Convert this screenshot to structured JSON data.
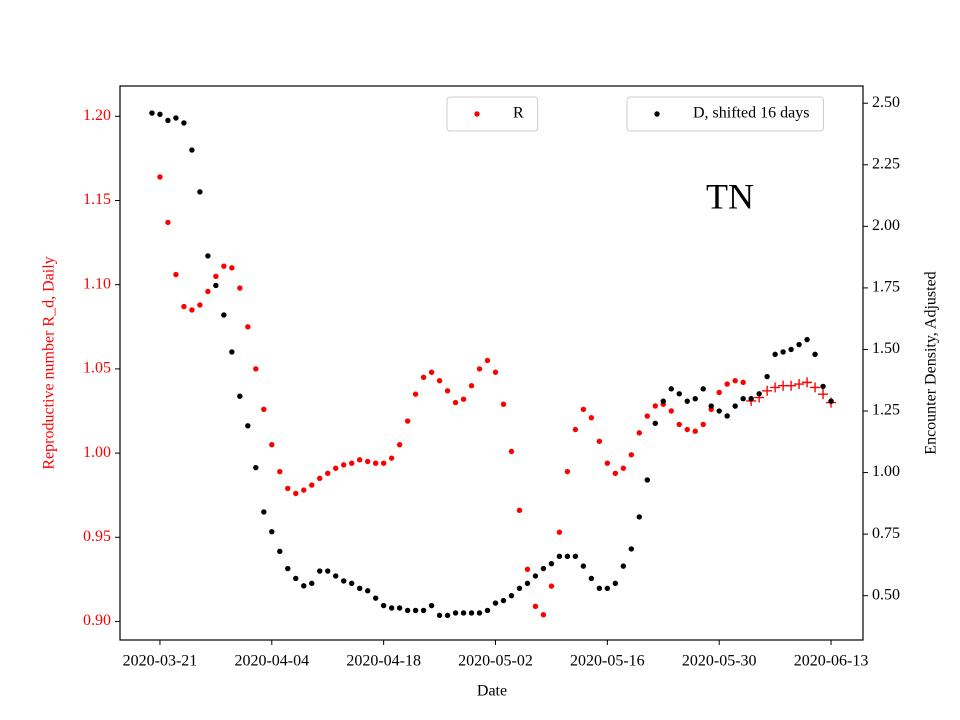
{
  "chart_data": {
    "type": "scatter",
    "annotation": "TN",
    "xlabel": "Date",
    "ylabel": "Reproductive number R_d, Daily",
    "y2label": "Encounter Density, Adjusted",
    "x": [
      "2020-03-20",
      "2020-03-21",
      "2020-03-22",
      "2020-03-23",
      "2020-03-24",
      "2020-03-25",
      "2020-03-26",
      "2020-03-27",
      "2020-03-28",
      "2020-03-29",
      "2020-03-30",
      "2020-03-31",
      "2020-04-01",
      "2020-04-02",
      "2020-04-03",
      "2020-04-04",
      "2020-04-05",
      "2020-04-06",
      "2020-04-07",
      "2020-04-08",
      "2020-04-09",
      "2020-04-10",
      "2020-04-11",
      "2020-04-12",
      "2020-04-13",
      "2020-04-14",
      "2020-04-15",
      "2020-04-16",
      "2020-04-17",
      "2020-04-18",
      "2020-04-19",
      "2020-04-20",
      "2020-04-21",
      "2020-04-22",
      "2020-04-23",
      "2020-04-24",
      "2020-04-25",
      "2020-04-26",
      "2020-04-27",
      "2020-04-28",
      "2020-04-29",
      "2020-04-30",
      "2020-05-01",
      "2020-05-02",
      "2020-05-03",
      "2020-05-04",
      "2020-05-05",
      "2020-05-06",
      "2020-05-07",
      "2020-05-08",
      "2020-05-09",
      "2020-05-10",
      "2020-05-11",
      "2020-05-12",
      "2020-05-13",
      "2020-05-14",
      "2020-05-15",
      "2020-05-16",
      "2020-05-17",
      "2020-05-18",
      "2020-05-19",
      "2020-05-20",
      "2020-05-21",
      "2020-05-22",
      "2020-05-23",
      "2020-05-24",
      "2020-05-25",
      "2020-05-26",
      "2020-05-27",
      "2020-05-28",
      "2020-05-29",
      "2020-05-30",
      "2020-05-31",
      "2020-06-01",
      "2020-06-02",
      "2020-06-03",
      "2020-06-04",
      "2020-06-05",
      "2020-06-06",
      "2020-06-07",
      "2020-06-08",
      "2020-06-09",
      "2020-06-10",
      "2020-06-11",
      "2020-06-12",
      "2020-06-13"
    ],
    "xlim": [
      "2020-03-16",
      "2020-06-17"
    ],
    "xticks": [
      "2020-03-21",
      "2020-04-04",
      "2020-04-18",
      "2020-05-02",
      "2020-05-16",
      "2020-05-30",
      "2020-06-13"
    ],
    "ylim": [
      0.889,
      1.218
    ],
    "yticks": [
      {
        "value": 0.9,
        "label": "0.90"
      },
      {
        "value": 0.95,
        "label": "0.95"
      },
      {
        "value": 1.0,
        "label": "1.00"
      },
      1.05,
      {
        "value": 1.1,
        "label": "1.10"
      },
      1.15,
      {
        "value": 1.2,
        "label": "1.20"
      }
    ],
    "y2lim": [
      0.32,
      2.57
    ],
    "y2ticks": [
      {
        "value": 0.5,
        "label": "0.50"
      },
      0.75,
      {
        "value": 1.0,
        "label": "1.00"
      },
      1.25,
      {
        "value": 1.5,
        "label": "1.50"
      },
      1.75,
      {
        "value": 2.0,
        "label": "2.00"
      },
      2.25,
      {
        "value": 2.5,
        "label": "2.50"
      }
    ],
    "y_color": "#ff0000",
    "series": [
      {
        "name": "R",
        "color": "#ff0000",
        "marker": "o",
        "legend": "upper center",
        "values": [
          null,
          1.164,
          1.137,
          1.106,
          1.087,
          1.085,
          1.088,
          1.096,
          1.105,
          1.111,
          1.11,
          1.098,
          1.075,
          1.05,
          1.026,
          1.005,
          0.989,
          0.979,
          0.976,
          0.978,
          0.981,
          0.985,
          0.988,
          0.991,
          0.993,
          0.994,
          0.996,
          0.995,
          0.994,
          0.994,
          0.997,
          1.005,
          1.019,
          1.035,
          1.045,
          1.048,
          1.043,
          1.037,
          1.03,
          1.032,
          1.04,
          1.05,
          1.055,
          1.048,
          1.029,
          1.001,
          0.966,
          0.931,
          0.909,
          0.904,
          0.921,
          0.953,
          0.989,
          1.014,
          1.026,
          1.021,
          1.007,
          0.994,
          0.988,
          0.991,
          0.999,
          1.012,
          1.022,
          1.028,
          1.029,
          1.025,
          1.017,
          1.014,
          1.013,
          1.017,
          1.026,
          1.036,
          1.041,
          1.043,
          1.042,
          null,
          null,
          null,
          null,
          null,
          null,
          null,
          null,
          null,
          null,
          null
        ]
      },
      {
        "color": "#ff0000",
        "marker": "+",
        "values": [
          null,
          null,
          null,
          null,
          null,
          null,
          null,
          null,
          null,
          null,
          null,
          null,
          null,
          null,
          null,
          null,
          null,
          null,
          null,
          null,
          null,
          null,
          null,
          null,
          null,
          null,
          null,
          null,
          null,
          null,
          null,
          null,
          null,
          null,
          null,
          null,
          null,
          null,
          null,
          null,
          null,
          null,
          null,
          null,
          null,
          null,
          null,
          null,
          null,
          null,
          null,
          null,
          null,
          null,
          null,
          null,
          null,
          null,
          null,
          null,
          null,
          null,
          null,
          null,
          null,
          null,
          null,
          null,
          null,
          null,
          null,
          null,
          null,
          null,
          null,
          1.031,
          1.033,
          1.037,
          1.039,
          1.04,
          1.04,
          1.041,
          1.042,
          1.039,
          1.035,
          1.03
        ]
      },
      {
        "name": "D, shifted 16 days",
        "color": "#000000",
        "marker": "o",
        "axis": "y2",
        "legend": "upper right",
        "values": [
          2.46,
          2.455,
          2.43,
          2.44,
          2.42,
          2.31,
          2.14,
          1.88,
          1.76,
          1.64,
          1.49,
          1.31,
          1.19,
          1.02,
          0.84,
          0.76,
          0.68,
          0.61,
          0.57,
          0.54,
          0.55,
          0.6,
          0.6,
          0.58,
          0.56,
          0.55,
          0.53,
          0.52,
          0.49,
          0.46,
          0.45,
          0.45,
          0.44,
          0.44,
          0.44,
          0.46,
          0.42,
          0.42,
          0.43,
          0.43,
          0.43,
          0.43,
          0.44,
          0.47,
          0.48,
          0.5,
          0.53,
          0.55,
          0.58,
          0.61,
          0.63,
          0.66,
          0.66,
          0.66,
          0.62,
          0.57,
          0.53,
          0.53,
          0.55,
          0.62,
          0.69,
          0.82,
          0.97,
          1.2,
          1.29,
          1.34,
          1.32,
          1.29,
          1.3,
          1.34,
          1.27,
          1.25,
          1.23,
          1.27,
          1.3,
          1.3,
          1.32,
          1.39,
          1.48,
          1.49,
          1.5,
          1.52,
          1.54,
          1.48,
          1.35,
          1.29
        ]
      }
    ]
  }
}
